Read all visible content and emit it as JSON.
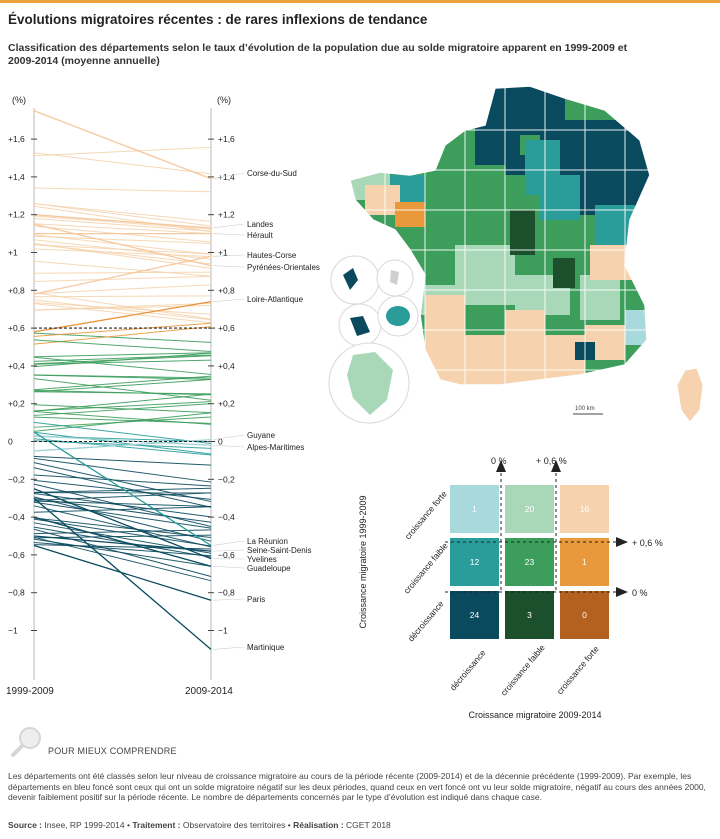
{
  "header": {
    "title": "Évolutions migratoires récentes : de rares inflexions de tendance",
    "subtitle": "Classification des départements selon le taux d’évolution de la population due au solde migratoire apparent en 1999-2009 et 2009-2014 (moyenne annuelle)"
  },
  "chart_data": {
    "type": "slope",
    "unit_label": "(%)",
    "left_label": "1999-2009",
    "right_label": "2009-2014",
    "ylim": [
      -1.15,
      1.75
    ],
    "left_ticks": [
      "+1,6",
      "+1,4",
      "+1,2",
      "+1",
      "+0,8",
      "+0,6",
      "+0,4",
      "+0,2",
      "0",
      "−0,2",
      "−0,4",
      "−0,6",
      "−0,8",
      "−1"
    ],
    "right_ticks": [
      "+1,6",
      "+1,4",
      "+1,2",
      "+1",
      "+0,8",
      "+0,6",
      "+0,4",
      "+0,2",
      "0",
      "−0,2",
      "−0,4",
      "−0,8",
      "−1"
    ],
    "threshold_labels": {
      "low": "0",
      "high": "0,6",
      "neg": "−0,6"
    },
    "thresholds": [
      0,
      0.6
    ],
    "annotated": [
      {
        "name": "Corse-du-Sud",
        "y1999": 1.75,
        "y2009": 1.39,
        "color": "#f5c9a0"
      },
      {
        "name": "Landes",
        "y1999": 1.2,
        "y2009": 1.13,
        "color": "#f5c9a0"
      },
      {
        "name": "Hérault",
        "y1999": 1.1,
        "y2009": 1.1,
        "color": "#f5c9a0"
      },
      {
        "name": "Hautes-Corse",
        "y1999": 0.78,
        "y2009": 0.98,
        "color": "#f5c9a0"
      },
      {
        "name": "Pyrénées-Orientales",
        "y1999": 1.15,
        "y2009": 0.93,
        "color": "#f5c9a0"
      },
      {
        "name": "Loire-Atlantique",
        "y1999": 0.58,
        "y2009": 0.74,
        "color": "#e8933a"
      },
      {
        "name": "Guyane",
        "y1999": -0.05,
        "y2009": 0.01,
        "color": "#9fd2d8"
      },
      {
        "name": "Alpes-Maritimes",
        "y1999": 0.03,
        "y2009": -0.02,
        "color": "#9fd2d8"
      },
      {
        "name": "La Réunion",
        "y1999": 0.05,
        "y2009": -0.55,
        "color": "#2a9d9a"
      },
      {
        "name": "Seine-Saint-Denis",
        "y1999": -0.5,
        "y2009": -0.58,
        "color": "#0a4a5e"
      },
      {
        "name": "Yvelines",
        "y1999": -0.25,
        "y2009": -0.62,
        "color": "#0a4a5e"
      },
      {
        "name": "Guadeloupe",
        "y1999": -0.4,
        "y2009": -0.66,
        "color": "#0a4a5e"
      },
      {
        "name": "Paris",
        "y1999": -0.55,
        "y2009": -0.84,
        "color": "#0a4a5e"
      },
      {
        "name": "Martinique",
        "y1999": -0.3,
        "y2009": -1.1,
        "color": "#0a4a5e"
      }
    ],
    "classification_matrix": {
      "x_title": "Croissance migratoire 2009-2014",
      "y_title": "Croissance migratoire 1999-2009",
      "x_categories": [
        "décroissance",
        "croissance faible",
        "croissance forte"
      ],
      "y_categories": [
        "croissance forte",
        "croissance faible",
        "décroissance"
      ],
      "x_threshold_labels": [
        "0 %",
        "+ 0,6 %"
      ],
      "y_threshold_labels": [
        "+ 0,6 %",
        "0 %"
      ],
      "cells": [
        [
          {
            "count": "1",
            "color": "#a8d9dd"
          },
          {
            "count": "20",
            "color": "#a9d8b8"
          },
          {
            "count": "16",
            "color": "#f6d3ae"
          }
        ],
        [
          {
            "count": "12",
            "color": "#2a9d9a"
          },
          {
            "count": "23",
            "color": "#3d9e5c"
          },
          {
            "count": "1",
            "color": "#e8993c"
          }
        ],
        [
          {
            "count": "24",
            "color": "#0a4a5e"
          },
          {
            "count": "3",
            "color": "#1c4f2c"
          },
          {
            "count": "0",
            "color": "#b4601e"
          }
        ]
      ]
    }
  },
  "map": {
    "scale_label": "100 km"
  },
  "explanation": {
    "heading": "POUR MIEUX COMPRENDRE",
    "text": "Les départements ont été classés selon leur niveau de croissance migratoire au cours de la période récente (2009-2014) et de la décennie précédente (1999-2009). Par exemple, les départements en bleu foncé sont ceux qui ont un solde migratoire négatif sur les deux périodes, quand ceux en vert foncé ont vu leur solde migratoire, négatif au cours des années 2000, devenir faiblement positif sur la période récente. Le nombre de départements concernés par le type d’évolution est indiqué dans chaque case."
  },
  "footer": {
    "source_label": "Source :",
    "source": "Insee, RP 1999-2014",
    "treatment_label": "Traitement :",
    "treatment": "Observatoire des territoires",
    "realisation_label": "Réalisation :",
    "realisation": "CGET 2018",
    "separator": "•"
  }
}
